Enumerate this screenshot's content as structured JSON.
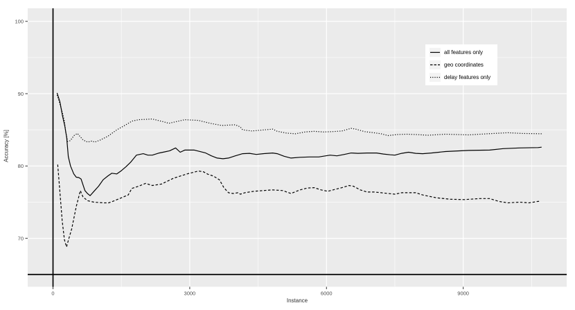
{
  "colors": {
    "panel_bg": "#EBEBEB",
    "grid": "#FFFFFF",
    "line": "#000000",
    "reference_line": "#000000",
    "tick_label": "#4D4D4D",
    "tick_mark": "#333333",
    "axis_title": "#303030",
    "legend_bg": "#FFFFFF",
    "legend_key_bg": "#F3F3F3"
  },
  "chart_data": {
    "type": "line",
    "title": "",
    "xlabel": "Instance",
    "ylabel": "Accuracy [%]",
    "xlim": [
      -555,
      11270
    ],
    "ylim": [
      63.3,
      101.8
    ],
    "x_ticks": [
      0,
      3000,
      6000,
      9000
    ],
    "x_tick_labels": [
      "0",
      "3000",
      "6000",
      "9000"
    ],
    "x_minor_ticks": [
      1500,
      4500,
      7500,
      10500
    ],
    "y_ticks": [
      70,
      80,
      90,
      100
    ],
    "y_tick_labels": [
      "70",
      "80",
      "90",
      "100"
    ],
    "y_minor_ticks": [
      65,
      75,
      85,
      95
    ],
    "grid": "white major and minor gridlines on gray panel",
    "legend_position": "inside top-right",
    "reference_lines": {
      "vline_x": 0,
      "hline_y": 65
    },
    "series": [
      {
        "name": "all features only",
        "linetype": "solid",
        "color": "#000000",
        "points": [
          [
            90,
            90.1
          ],
          [
            150,
            88.9
          ],
          [
            210,
            86.9
          ],
          [
            260,
            85.5
          ],
          [
            300,
            83.9
          ],
          [
            335,
            81.3
          ],
          [
            385,
            80.0
          ],
          [
            455,
            78.9
          ],
          [
            510,
            78.45
          ],
          [
            565,
            78.4
          ],
          [
            615,
            78.2
          ],
          [
            700,
            76.6
          ],
          [
            755,
            76.2
          ],
          [
            815,
            75.9
          ],
          [
            900,
            76.5
          ],
          [
            1000,
            77.2
          ],
          [
            1100,
            78.1
          ],
          [
            1200,
            78.6
          ],
          [
            1290,
            79.0
          ],
          [
            1400,
            78.9
          ],
          [
            1500,
            79.35
          ],
          [
            1600,
            79.9
          ],
          [
            1700,
            80.5
          ],
          [
            1830,
            81.5
          ],
          [
            1980,
            81.7
          ],
          [
            2080,
            81.5
          ],
          [
            2180,
            81.5
          ],
          [
            2330,
            81.8
          ],
          [
            2450,
            81.95
          ],
          [
            2560,
            82.1
          ],
          [
            2690,
            82.5
          ],
          [
            2790,
            81.9
          ],
          [
            2890,
            82.2
          ],
          [
            3100,
            82.2
          ],
          [
            3350,
            81.8
          ],
          [
            3475,
            81.4
          ],
          [
            3600,
            81.1
          ],
          [
            3730,
            81.0
          ],
          [
            3850,
            81.1
          ],
          [
            4000,
            81.4
          ],
          [
            4160,
            81.7
          ],
          [
            4310,
            81.75
          ],
          [
            4460,
            81.6
          ],
          [
            4610,
            81.7
          ],
          [
            4820,
            81.8
          ],
          [
            4920,
            81.7
          ],
          [
            5070,
            81.35
          ],
          [
            5220,
            81.1
          ],
          [
            5420,
            81.2
          ],
          [
            5630,
            81.25
          ],
          [
            5830,
            81.25
          ],
          [
            6080,
            81.5
          ],
          [
            6230,
            81.4
          ],
          [
            6390,
            81.6
          ],
          [
            6540,
            81.8
          ],
          [
            6690,
            81.75
          ],
          [
            6890,
            81.8
          ],
          [
            7100,
            81.8
          ],
          [
            7250,
            81.65
          ],
          [
            7400,
            81.55
          ],
          [
            7500,
            81.5
          ],
          [
            7650,
            81.75
          ],
          [
            7800,
            81.9
          ],
          [
            7960,
            81.75
          ],
          [
            8110,
            81.7
          ],
          [
            8300,
            81.8
          ],
          [
            8610,
            82.0
          ],
          [
            9120,
            82.15
          ],
          [
            9580,
            82.2
          ],
          [
            9880,
            82.4
          ],
          [
            10240,
            82.5
          ],
          [
            10640,
            82.55
          ],
          [
            10720,
            82.6
          ]
        ]
      },
      {
        "name": "geo coordinates",
        "linetype": "dashed",
        "color": "#000000",
        "points": [
          [
            103,
            80.2
          ],
          [
            150,
            76.5
          ],
          [
            200,
            72.5
          ],
          [
            250,
            69.8
          ],
          [
            296,
            68.8
          ],
          [
            350,
            70.0
          ],
          [
            410,
            71.3
          ],
          [
            510,
            74.4
          ],
          [
            600,
            76.6
          ],
          [
            660,
            75.7
          ],
          [
            760,
            75.2
          ],
          [
            900,
            75.0
          ],
          [
            1100,
            74.9
          ],
          [
            1220,
            74.9
          ],
          [
            1350,
            75.2
          ],
          [
            1500,
            75.6
          ],
          [
            1650,
            76.0
          ],
          [
            1730,
            76.9
          ],
          [
            1880,
            77.2
          ],
          [
            2030,
            77.6
          ],
          [
            2180,
            77.3
          ],
          [
            2380,
            77.5
          ],
          [
            2640,
            78.3
          ],
          [
            2940,
            78.9
          ],
          [
            3190,
            79.3
          ],
          [
            3300,
            79.2
          ],
          [
            3400,
            78.85
          ],
          [
            3520,
            78.6
          ],
          [
            3650,
            78.1
          ],
          [
            3750,
            77.0
          ],
          [
            3850,
            76.3
          ],
          [
            3950,
            76.2
          ],
          [
            4060,
            76.3
          ],
          [
            4110,
            76.1
          ],
          [
            4210,
            76.3
          ],
          [
            4410,
            76.5
          ],
          [
            4610,
            76.6
          ],
          [
            4820,
            76.7
          ],
          [
            5040,
            76.6
          ],
          [
            5220,
            76.2
          ],
          [
            5420,
            76.7
          ],
          [
            5580,
            76.95
          ],
          [
            5730,
            77.0
          ],
          [
            5880,
            76.7
          ],
          [
            6030,
            76.5
          ],
          [
            6180,
            76.75
          ],
          [
            6340,
            77.0
          ],
          [
            6490,
            77.3
          ],
          [
            6590,
            77.2
          ],
          [
            6740,
            76.7
          ],
          [
            6890,
            76.4
          ],
          [
            7050,
            76.4
          ],
          [
            7200,
            76.3
          ],
          [
            7350,
            76.2
          ],
          [
            7500,
            76.1
          ],
          [
            7650,
            76.3
          ],
          [
            7800,
            76.3
          ],
          [
            7960,
            76.3
          ],
          [
            8110,
            76.0
          ],
          [
            8410,
            75.6
          ],
          [
            8720,
            75.4
          ],
          [
            9020,
            75.35
          ],
          [
            9370,
            75.5
          ],
          [
            9580,
            75.5
          ],
          [
            9780,
            75.1
          ],
          [
            9980,
            74.9
          ],
          [
            10240,
            75.0
          ],
          [
            10440,
            74.9
          ],
          [
            10640,
            75.1
          ],
          [
            10700,
            75.1
          ]
        ]
      },
      {
        "name": "delay features only",
        "linetype": "dotted",
        "color": "#000000",
        "points": [
          [
            90,
            89.8
          ],
          [
            150,
            88.6
          ],
          [
            210,
            87.3
          ],
          [
            250,
            86.2
          ],
          [
            280,
            84.7
          ],
          [
            320,
            83.4
          ],
          [
            380,
            83.5
          ],
          [
            460,
            84.2
          ],
          [
            535,
            84.5
          ],
          [
            660,
            83.6
          ],
          [
            760,
            83.3
          ],
          [
            850,
            83.45
          ],
          [
            920,
            83.3
          ],
          [
            1040,
            83.6
          ],
          [
            1200,
            84.1
          ],
          [
            1400,
            85.0
          ],
          [
            1600,
            85.7
          ],
          [
            1730,
            86.2
          ],
          [
            1880,
            86.4
          ],
          [
            2180,
            86.5
          ],
          [
            2430,
            86.1
          ],
          [
            2540,
            85.9
          ],
          [
            2890,
            86.4
          ],
          [
            3190,
            86.3
          ],
          [
            3450,
            85.9
          ],
          [
            3700,
            85.6
          ],
          [
            4000,
            85.7
          ],
          [
            4110,
            85.4
          ],
          [
            4160,
            85.0
          ],
          [
            4360,
            84.85
          ],
          [
            4560,
            84.95
          ],
          [
            4820,
            85.1
          ],
          [
            4920,
            84.8
          ],
          [
            5120,
            84.55
          ],
          [
            5320,
            84.45
          ],
          [
            5530,
            84.7
          ],
          [
            5730,
            84.8
          ],
          [
            5930,
            84.7
          ],
          [
            6130,
            84.75
          ],
          [
            6340,
            84.85
          ],
          [
            6540,
            85.2
          ],
          [
            6640,
            85.1
          ],
          [
            6840,
            84.75
          ],
          [
            7040,
            84.6
          ],
          [
            7200,
            84.45
          ],
          [
            7350,
            84.2
          ],
          [
            7550,
            84.35
          ],
          [
            7750,
            84.4
          ],
          [
            7960,
            84.35
          ],
          [
            8230,
            84.25
          ],
          [
            8610,
            84.4
          ],
          [
            9120,
            84.3
          ],
          [
            9530,
            84.45
          ],
          [
            9980,
            84.6
          ],
          [
            10290,
            84.5
          ],
          [
            10720,
            84.45
          ]
        ]
      }
    ]
  }
}
